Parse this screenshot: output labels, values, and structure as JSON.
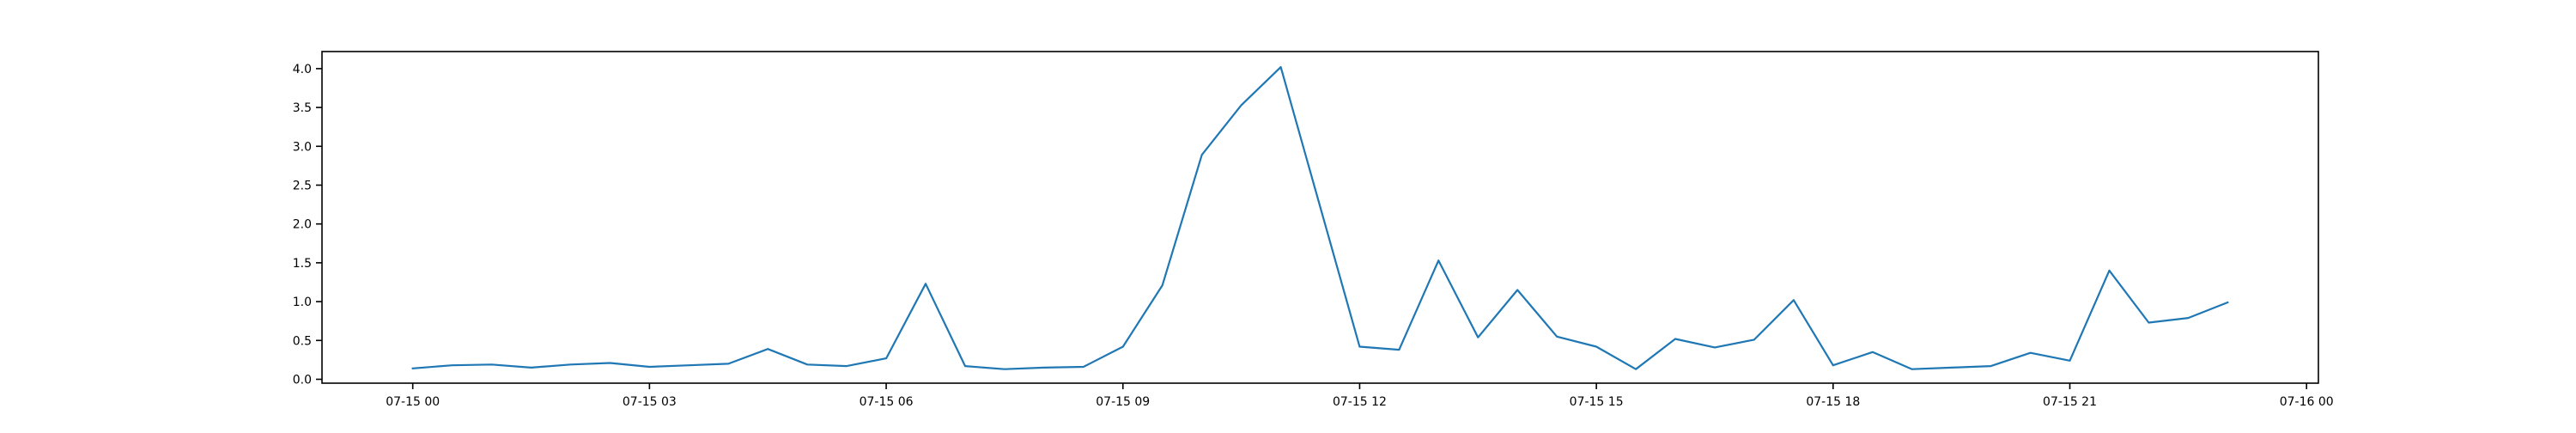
{
  "chart_data": {
    "type": "line",
    "title": "",
    "xlabel": "",
    "ylabel": "",
    "x_tick_labels": [
      "07-15 00",
      "07-15 03",
      "07-15 06",
      "07-15 09",
      "07-15 12",
      "07-15 15",
      "07-15 18",
      "07-15 21",
      "07-16 00"
    ],
    "y_tick_labels": [
      "0.0",
      "0.5",
      "1.0",
      "1.5",
      "2.0",
      "2.5",
      "3.0",
      "3.5",
      "4.0"
    ],
    "xlim": [
      "07-14 22:51",
      "07-16 00:09"
    ],
    "ylim": [
      -0.05,
      4.22
    ],
    "grid": false,
    "legend": "none",
    "series": [
      {
        "color": "#1f77b4",
        "x": [
          "07-15 00:00",
          "07-15 00:30",
          "07-15 01:00",
          "07-15 01:30",
          "07-15 02:00",
          "07-15 02:30",
          "07-15 03:00",
          "07-15 03:30",
          "07-15 04:00",
          "07-15 04:30",
          "07-15 05:00",
          "07-15 05:30",
          "07-15 06:00",
          "07-15 06:30",
          "07-15 07:00",
          "07-15 07:30",
          "07-15 08:00",
          "07-15 08:30",
          "07-15 09:00",
          "07-15 09:30",
          "07-15 10:00",
          "07-15 10:30",
          "07-15 11:00",
          "07-15 11:30",
          "07-15 12:00",
          "07-15 12:30",
          "07-15 13:00",
          "07-15 13:30",
          "07-15 14:00",
          "07-15 14:30",
          "07-15 15:00",
          "07-15 15:30",
          "07-15 16:00",
          "07-15 16:30",
          "07-15 17:00",
          "07-15 17:30",
          "07-15 18:00",
          "07-15 18:30",
          "07-15 19:00",
          "07-15 19:30",
          "07-15 20:00",
          "07-15 20:30",
          "07-15 21:00",
          "07-15 21:30",
          "07-15 22:00",
          "07-15 22:30",
          "07-15 23:00"
        ],
        "values": [
          0.14,
          0.18,
          0.19,
          0.15,
          0.19,
          0.21,
          0.16,
          0.18,
          0.2,
          0.39,
          0.19,
          0.17,
          0.27,
          1.23,
          0.17,
          0.13,
          0.15,
          0.16,
          0.42,
          1.21,
          2.89,
          3.53,
          4.02,
          2.22,
          0.42,
          0.38,
          1.53,
          0.54,
          1.15,
          0.55,
          0.42,
          0.13,
          0.52,
          0.41,
          0.51,
          1.02,
          0.18,
          0.35,
          0.13,
          0.15,
          0.17,
          0.34,
          0.24,
          1.4,
          0.73,
          0.79,
          0.99
        ]
      }
    ]
  }
}
